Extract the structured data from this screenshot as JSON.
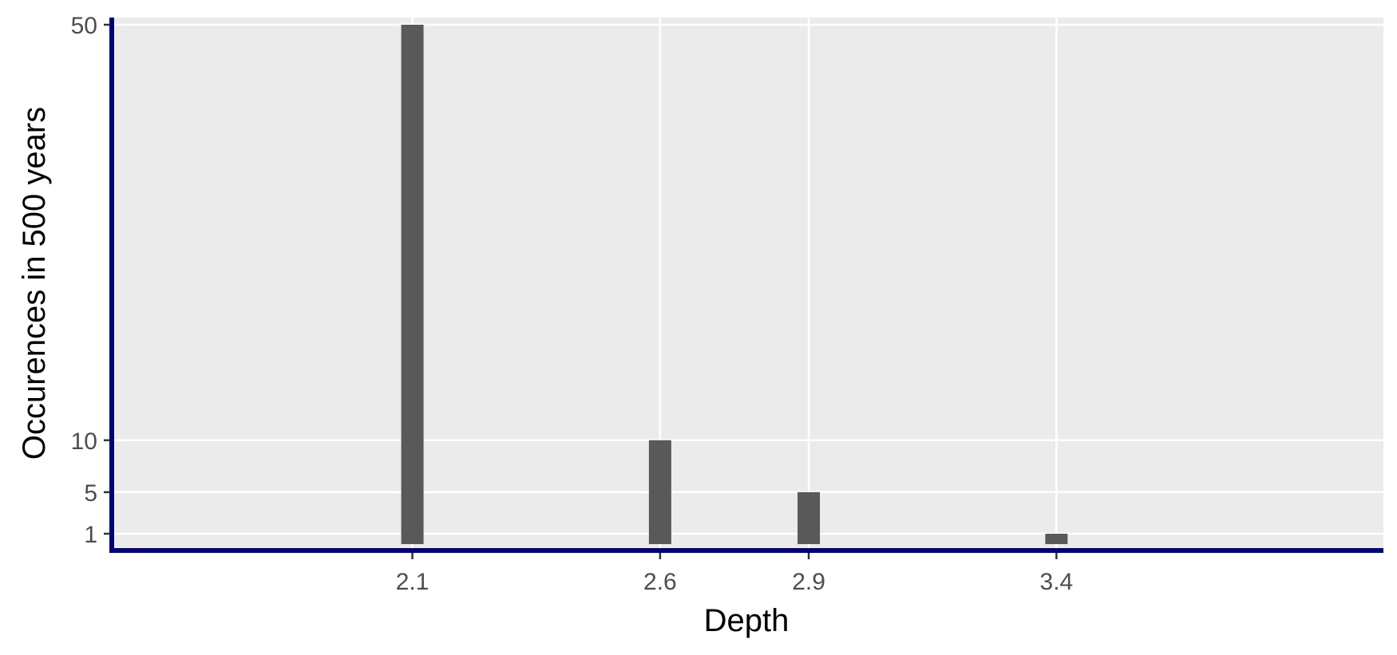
{
  "chart_data": {
    "type": "bar",
    "title": "",
    "xlabel": "Depth",
    "ylabel": "Occurences in 500 years",
    "x": [
      2.1,
      2.6,
      2.9,
      3.4
    ],
    "x_tick_labels": [
      "2.1",
      "2.6",
      "2.9",
      "3.4"
    ],
    "values": [
      50,
      10,
      5,
      1
    ],
    "y_ticks": [
      1,
      5,
      10,
      50
    ],
    "y_tick_labels": [
      "1",
      "5",
      "10",
      "50"
    ],
    "xlim": [
      1.49,
      4.06
    ],
    "ylim": [
      0,
      50
    ],
    "grid": true,
    "legend": "none",
    "colors": {
      "panel_background": "#ebebeb",
      "grid": "#ffffff",
      "bar": "#595959",
      "axis_line": "#00007f",
      "tick_label": "#4d4d4d",
      "axis_title": "#000000"
    }
  }
}
